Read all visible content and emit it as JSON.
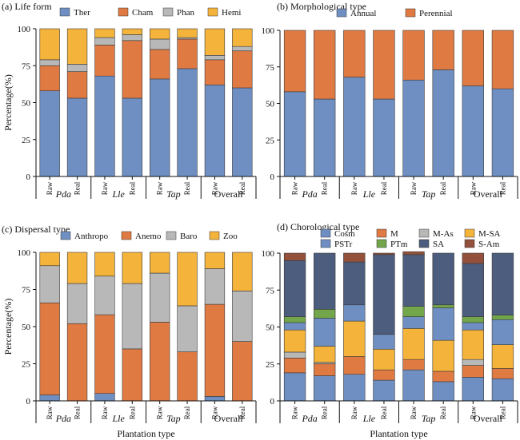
{
  "figure": {
    "shared_xlabel": "Plantation type",
    "shared_ylabel": "Percentage(%)",
    "colors": {
      "blue": "#6f8fc3",
      "orange": "#e07a43",
      "gray": "#b8b8b8",
      "yellow": "#f4b33b",
      "green": "#73a64a",
      "navy": "#4d5d7d",
      "brown": "#93503a"
    }
  },
  "chart_data": [
    {
      "panel": "a",
      "type": "bar",
      "stacked": true,
      "title": "(a) Life form",
      "ylabel": "Percentage(%)",
      "xlabel": "",
      "ylim": [
        0,
        100
      ],
      "yticks": [
        0,
        25,
        50,
        75,
        100
      ],
      "categories": [
        "Raw",
        "Real",
        "Raw",
        "Real",
        "Raw",
        "Real",
        "Raw",
        "Real"
      ],
      "groups": [
        "Pda",
        "Lle",
        "Tap",
        "Overall"
      ],
      "legend_position": "top",
      "series": [
        {
          "name": "Ther",
          "color": "#6f8fc3",
          "values": [
            58,
            53,
            68,
            53,
            66,
            73,
            62,
            60
          ]
        },
        {
          "name": "Cham",
          "color": "#e07a43",
          "values": [
            17,
            18,
            21,
            39,
            20,
            20,
            17,
            25
          ]
        },
        {
          "name": "Phan",
          "color": "#b8b8b8",
          "values": [
            4,
            5,
            5,
            4,
            7,
            1,
            3,
            3
          ]
        },
        {
          "name": "Hemi",
          "color": "#f4b33b",
          "values": [
            21,
            24,
            6,
            4,
            7,
            6,
            18,
            12
          ]
        }
      ]
    },
    {
      "panel": "b",
      "type": "bar",
      "stacked": true,
      "title": "(b) Morphological type",
      "ylabel": "",
      "xlabel": "",
      "ylim": [
        0,
        100
      ],
      "yticks": [
        0,
        25,
        50,
        75,
        100
      ],
      "categories": [
        "Raw",
        "Real",
        "Raw",
        "Real",
        "Raw",
        "Real",
        "Raw",
        "Real"
      ],
      "groups": [
        "Pda",
        "Lle",
        "Tap",
        "Overall"
      ],
      "legend_position": "top",
      "series": [
        {
          "name": "Annual",
          "color": "#6f8fc3",
          "values": [
            58,
            53,
            68,
            53,
            66,
            73,
            62,
            60
          ]
        },
        {
          "name": "Perennial",
          "color": "#e07a43",
          "values": [
            42,
            47,
            32,
            47,
            34,
            27,
            38,
            40
          ]
        }
      ]
    },
    {
      "panel": "c",
      "type": "bar",
      "stacked": true,
      "title": "(c) Dispersal type",
      "ylabel": "Percentage(%)",
      "xlabel": "Plantation type",
      "ylim": [
        0,
        100
      ],
      "yticks": [
        0,
        25,
        50,
        75,
        100
      ],
      "categories": [
        "Raw",
        "Real",
        "Raw",
        "Real",
        "Raw",
        "Real",
        "Raw",
        "Real"
      ],
      "groups": [
        "Pda",
        "Lle",
        "Tap",
        "Overall"
      ],
      "legend_position": "top",
      "series": [
        {
          "name": "Anthropo",
          "color": "#6f8fc3",
          "values": [
            4,
            0,
            5,
            0,
            0,
            0,
            3,
            0
          ]
        },
        {
          "name": "Anemo",
          "color": "#e07a43",
          "values": [
            62,
            52,
            53,
            35,
            53,
            33,
            62,
            40
          ]
        },
        {
          "name": "Baro",
          "color": "#b8b8b8",
          "values": [
            25,
            27,
            26,
            44,
            33,
            31,
            24,
            34
          ]
        },
        {
          "name": "Zoo",
          "color": "#f4b33b",
          "values": [
            9,
            21,
            16,
            21,
            14,
            36,
            11,
            26
          ]
        }
      ]
    },
    {
      "panel": "d",
      "type": "bar",
      "stacked": true,
      "title": "(d) Chorological type",
      "ylabel": "",
      "xlabel": "Plantation type",
      "ylim": [
        0,
        100
      ],
      "yticks": [
        0,
        25,
        50,
        75,
        100
      ],
      "categories": [
        "Raw",
        "Real",
        "Raw",
        "Real",
        "Raw",
        "Real",
        "Raw",
        "Real"
      ],
      "groups": [
        "Pda",
        "Lle",
        "Tap",
        "Overall"
      ],
      "legend_position": "top",
      "series": [
        {
          "name": "Cosm",
          "color": "#6f8fc3",
          "values": [
            19,
            17,
            18,
            14,
            21,
            13,
            16,
            15
          ]
        },
        {
          "name": "M",
          "color": "#e07a43",
          "values": [
            10,
            8,
            12,
            7,
            7,
            7,
            8,
            7
          ]
        },
        {
          "name": "M-As",
          "color": "#b8b8b8",
          "values": [
            4,
            1,
            0,
            0,
            0,
            0,
            4,
            0
          ]
        },
        {
          "name": "M-SA",
          "color": "#f4b33b",
          "values": [
            15,
            11,
            24,
            14,
            21,
            21,
            20,
            16
          ]
        },
        {
          "name": "PSTr",
          "color": "#6f8fc3",
          "values": [
            5,
            19,
            11,
            10,
            8,
            22,
            5,
            17
          ]
        },
        {
          "name": "PTm",
          "color": "#73a64a",
          "values": [
            4,
            6,
            0,
            0,
            7,
            2,
            4,
            3
          ]
        },
        {
          "name": "SA",
          "color": "#4d5d7d",
          "values": [
            38,
            38,
            29,
            54,
            35,
            35,
            36,
            42
          ]
        },
        {
          "name": "S-Am",
          "color": "#93503a",
          "values": [
            5,
            0,
            6,
            1,
            2,
            0,
            7,
            0
          ]
        }
      ]
    }
  ]
}
